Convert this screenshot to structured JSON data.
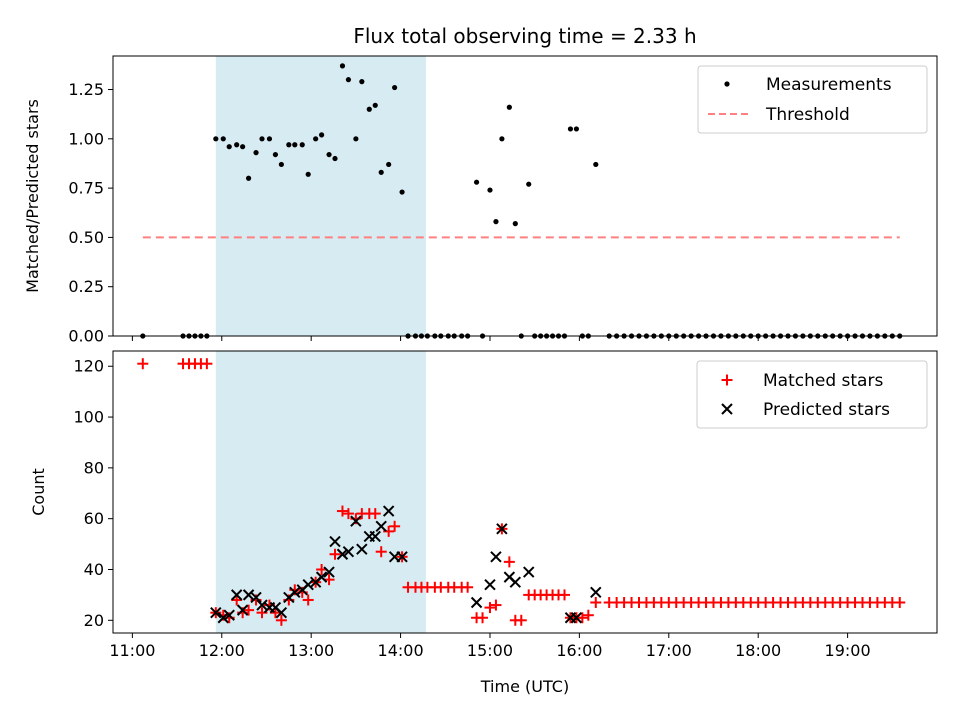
{
  "chart_data": [
    {
      "type": "scatter",
      "title": "Flux total observing time = 2.33 h",
      "xlabel": "",
      "ylabel": "Matched/Predicted stars",
      "x_unit": "time (UTC)",
      "xlim": [
        "10:47",
        "20:00"
      ],
      "ylim": [
        0,
        1.42
      ],
      "yticks": [
        0.0,
        0.25,
        0.5,
        0.75,
        1.0,
        1.25
      ],
      "ytick_labels": [
        "0.00",
        "0.25",
        "0.50",
        "0.75",
        "1.00",
        "1.25"
      ],
      "xticks": [
        "11:00",
        "12:00",
        "13:00",
        "14:00",
        "15:00",
        "16:00",
        "17:00",
        "18:00",
        "19:00"
      ],
      "shaded_span": [
        "11:56",
        "14:17"
      ],
      "legend_position": "top-right",
      "series": [
        {
          "name": "Measurements",
          "kind": "points",
          "color": "#000000",
          "points": [
            [
              "11:07",
              0
            ],
            [
              "11:34",
              0
            ],
            [
              "11:38",
              0
            ],
            [
              "11:42",
              0
            ],
            [
              "11:46",
              0
            ],
            [
              "11:50",
              0
            ],
            [
              "11:56",
              1.0
            ],
            [
              "12:01",
              1.0
            ],
            [
              "12:05",
              0.96
            ],
            [
              "12:10",
              0.97
            ],
            [
              "12:14",
              0.96
            ],
            [
              "12:18",
              0.8
            ],
            [
              "12:23",
              0.93
            ],
            [
              "12:27",
              1.0
            ],
            [
              "12:32",
              1.0
            ],
            [
              "12:36",
              0.92
            ],
            [
              "12:40",
              0.87
            ],
            [
              "12:45",
              0.97
            ],
            [
              "12:49",
              0.97
            ],
            [
              "12:54",
              0.97
            ],
            [
              "12:58",
              0.82
            ],
            [
              "13:03",
              1.0
            ],
            [
              "13:07",
              1.02
            ],
            [
              "13:12",
              0.92
            ],
            [
              "13:16",
              0.9
            ],
            [
              "13:21",
              1.37
            ],
            [
              "13:25",
              1.3
            ],
            [
              "13:30",
              1.0
            ],
            [
              "13:34",
              1.29
            ],
            [
              "13:39",
              1.15
            ],
            [
              "13:43",
              1.17
            ],
            [
              "13:47",
              0.83
            ],
            [
              "13:52",
              0.87
            ],
            [
              "13:56",
              1.26
            ],
            [
              "14:01",
              0.73
            ],
            [
              "14:05",
              0
            ],
            [
              "14:10",
              0
            ],
            [
              "14:14",
              0
            ],
            [
              "14:18",
              0
            ],
            [
              "14:23",
              0
            ],
            [
              "14:27",
              0
            ],
            [
              "14:32",
              0
            ],
            [
              "14:36",
              0
            ],
            [
              "14:41",
              0
            ],
            [
              "14:45",
              0
            ],
            [
              "14:51",
              0.78
            ],
            [
              "14:55",
              0
            ],
            [
              "15:00",
              0.74
            ],
            [
              "15:04",
              0.58
            ],
            [
              "15:08",
              1.0
            ],
            [
              "15:13",
              1.16
            ],
            [
              "15:17",
              0.57
            ],
            [
              "15:21",
              0
            ],
            [
              "15:26",
              0.77
            ],
            [
              "15:30",
              0
            ],
            [
              "15:34",
              0
            ],
            [
              "15:38",
              0
            ],
            [
              "15:42",
              0
            ],
            [
              "15:46",
              0
            ],
            [
              "15:50",
              0
            ],
            [
              "15:54",
              1.05
            ],
            [
              "15:58",
              1.05
            ],
            [
              "16:02",
              0
            ],
            [
              "16:06",
              0
            ],
            [
              "16:11",
              0.87
            ],
            [
              "16:20",
              0
            ],
            [
              "16:25",
              0
            ],
            [
              "16:30",
              0
            ],
            [
              "16:35",
              0
            ],
            [
              "16:40",
              0
            ],
            [
              "16:45",
              0
            ],
            [
              "16:50",
              0
            ],
            [
              "16:55",
              0
            ],
            [
              "17:00",
              0
            ],
            [
              "17:05",
              0
            ],
            [
              "17:10",
              0
            ],
            [
              "17:15",
              0
            ],
            [
              "17:20",
              0
            ],
            [
              "17:25",
              0
            ],
            [
              "17:30",
              0
            ],
            [
              "17:35",
              0
            ],
            [
              "17:40",
              0
            ],
            [
              "17:45",
              0
            ],
            [
              "17:50",
              0
            ],
            [
              "17:55",
              0
            ],
            [
              "18:00",
              0
            ],
            [
              "18:05",
              0
            ],
            [
              "18:10",
              0
            ],
            [
              "18:15",
              0
            ],
            [
              "18:20",
              0
            ],
            [
              "18:25",
              0
            ],
            [
              "18:30",
              0
            ],
            [
              "18:35",
              0
            ],
            [
              "18:40",
              0
            ],
            [
              "18:45",
              0
            ],
            [
              "18:50",
              0
            ],
            [
              "18:55",
              0
            ],
            [
              "19:00",
              0
            ],
            [
              "19:05",
              0
            ],
            [
              "19:10",
              0
            ],
            [
              "19:15",
              0
            ],
            [
              "19:20",
              0
            ],
            [
              "19:25",
              0
            ],
            [
              "19:30",
              0
            ],
            [
              "19:35",
              0
            ]
          ]
        },
        {
          "name": "Threshold",
          "kind": "dashed-line",
          "color": "#ff8080",
          "points": [
            [
              "11:07",
              0.5
            ],
            [
              "19:35",
              0.5
            ]
          ]
        }
      ]
    },
    {
      "type": "scatter",
      "title": "",
      "xlabel": "Time (UTC)",
      "ylabel": "Count",
      "xlim": [
        "10:47",
        "20:00"
      ],
      "ylim": [
        15,
        126
      ],
      "yticks": [
        20,
        40,
        60,
        80,
        100,
        120
      ],
      "ytick_labels": [
        "20",
        "40",
        "60",
        "80",
        "100",
        "120"
      ],
      "xticks": [
        "11:00",
        "12:00",
        "13:00",
        "14:00",
        "15:00",
        "16:00",
        "17:00",
        "18:00",
        "19:00"
      ],
      "xtick_labels": [
        "11:00",
        "12:00",
        "13:00",
        "14:00",
        "15:00",
        "16:00",
        "17:00",
        "18:00",
        "19:00"
      ],
      "shaded_span": [
        "11:56",
        "14:17"
      ],
      "legend_position": "top-right",
      "series": [
        {
          "name": "Matched stars",
          "kind": "plus",
          "color": "#ff0000",
          "points": [
            [
              "11:07",
              121
            ],
            [
              "11:34",
              121
            ],
            [
              "11:38",
              121
            ],
            [
              "11:42",
              121
            ],
            [
              "11:46",
              121
            ],
            [
              "11:50",
              121
            ],
            [
              "11:56",
              23
            ],
            [
              "12:01",
              22
            ],
            [
              "12:05",
              21
            ],
            [
              "12:10",
              28
            ],
            [
              "12:14",
              23
            ],
            [
              "12:18",
              24
            ],
            [
              "12:23",
              28
            ],
            [
              "12:27",
              23
            ],
            [
              "12:32",
              26
            ],
            [
              "12:36",
              23
            ],
            [
              "12:40",
              20
            ],
            [
              "12:45",
              28
            ],
            [
              "12:49",
              32
            ],
            [
              "12:54",
              31
            ],
            [
              "12:58",
              28
            ],
            [
              "13:03",
              35
            ],
            [
              "13:07",
              40
            ],
            [
              "13:12",
              36
            ],
            [
              "13:16",
              46
            ],
            [
              "13:21",
              63
            ],
            [
              "13:25",
              62
            ],
            [
              "13:30",
              60
            ],
            [
              "13:34",
              62
            ],
            [
              "13:39",
              62
            ],
            [
              "13:43",
              62
            ],
            [
              "13:47",
              47
            ],
            [
              "13:52",
              55
            ],
            [
              "13:56",
              57
            ],
            [
              "14:01",
              45
            ],
            [
              "14:05",
              33
            ],
            [
              "14:10",
              33
            ],
            [
              "14:14",
              33
            ],
            [
              "14:18",
              33
            ],
            [
              "14:23",
              33
            ],
            [
              "14:27",
              33
            ],
            [
              "14:32",
              33
            ],
            [
              "14:36",
              33
            ],
            [
              "14:41",
              33
            ],
            [
              "14:45",
              33
            ],
            [
              "14:51",
              21
            ],
            [
              "14:55",
              21
            ],
            [
              "15:00",
              25
            ],
            [
              "15:04",
              26
            ],
            [
              "15:08",
              56
            ],
            [
              "15:13",
              43
            ],
            [
              "15:17",
              20
            ],
            [
              "15:21",
              20
            ],
            [
              "15:26",
              30
            ],
            [
              "15:30",
              30
            ],
            [
              "15:34",
              30
            ],
            [
              "15:38",
              30
            ],
            [
              "15:42",
              30
            ],
            [
              "15:46",
              30
            ],
            [
              "15:50",
              30
            ],
            [
              "15:54",
              21
            ],
            [
              "15:58",
              21
            ],
            [
              "16:02",
              21
            ],
            [
              "16:06",
              22
            ],
            [
              "16:11",
              27
            ],
            [
              "16:20",
              27
            ],
            [
              "16:25",
              27
            ],
            [
              "16:30",
              27
            ],
            [
              "16:35",
              27
            ],
            [
              "16:40",
              27
            ],
            [
              "16:45",
              27
            ],
            [
              "16:50",
              27
            ],
            [
              "16:55",
              27
            ],
            [
              "17:00",
              27
            ],
            [
              "17:05",
              27
            ],
            [
              "17:10",
              27
            ],
            [
              "17:15",
              27
            ],
            [
              "17:20",
              27
            ],
            [
              "17:25",
              27
            ],
            [
              "17:30",
              27
            ],
            [
              "17:35",
              27
            ],
            [
              "17:40",
              27
            ],
            [
              "17:45",
              27
            ],
            [
              "17:50",
              27
            ],
            [
              "17:55",
              27
            ],
            [
              "18:00",
              27
            ],
            [
              "18:05",
              27
            ],
            [
              "18:10",
              27
            ],
            [
              "18:15",
              27
            ],
            [
              "18:20",
              27
            ],
            [
              "18:25",
              27
            ],
            [
              "18:30",
              27
            ],
            [
              "18:35",
              27
            ],
            [
              "18:40",
              27
            ],
            [
              "18:45",
              27
            ],
            [
              "18:50",
              27
            ],
            [
              "18:55",
              27
            ],
            [
              "19:00",
              27
            ],
            [
              "19:05",
              27
            ],
            [
              "19:10",
              27
            ],
            [
              "19:15",
              27
            ],
            [
              "19:20",
              27
            ],
            [
              "19:25",
              27
            ],
            [
              "19:30",
              27
            ],
            [
              "19:35",
              27
            ]
          ]
        },
        {
          "name": "Predicted stars",
          "kind": "cross",
          "color": "#000000",
          "points": [
            [
              "11:56",
              23
            ],
            [
              "12:01",
              21
            ],
            [
              "12:05",
              22
            ],
            [
              "12:10",
              30
            ],
            [
              "12:14",
              24
            ],
            [
              "12:18",
              30
            ],
            [
              "12:23",
              29
            ],
            [
              "12:27",
              26
            ],
            [
              "12:32",
              25
            ],
            [
              "12:36",
              25
            ],
            [
              "12:40",
              23
            ],
            [
              "12:45",
              29
            ],
            [
              "12:49",
              31
            ],
            [
              "12:54",
              32
            ],
            [
              "12:58",
              34
            ],
            [
              "13:03",
              35
            ],
            [
              "13:07",
              37
            ],
            [
              "13:12",
              39
            ],
            [
              "13:16",
              51
            ],
            [
              "13:21",
              46
            ],
            [
              "13:25",
              47
            ],
            [
              "13:30",
              59
            ],
            [
              "13:34",
              48
            ],
            [
              "13:39",
              53
            ],
            [
              "13:43",
              53
            ],
            [
              "13:47",
              57
            ],
            [
              "13:52",
              63
            ],
            [
              "13:56",
              45
            ],
            [
              "14:01",
              45
            ],
            [
              "14:51",
              27
            ],
            [
              "15:00",
              34
            ],
            [
              "15:04",
              45
            ],
            [
              "15:08",
              56
            ],
            [
              "15:13",
              37
            ],
            [
              "15:17",
              35
            ],
            [
              "15:26",
              39
            ],
            [
              "15:54",
              21
            ],
            [
              "15:58",
              21
            ],
            [
              "16:11",
              31
            ]
          ]
        }
      ]
    }
  ]
}
